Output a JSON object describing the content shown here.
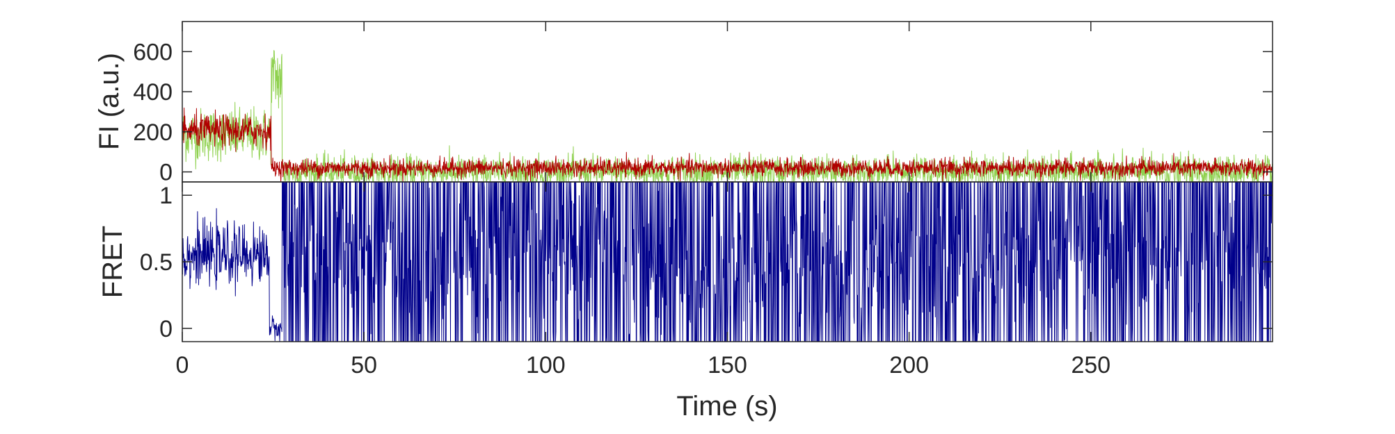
{
  "chart_data": [
    {
      "type": "line",
      "title": "",
      "xlabel": "",
      "ylabel": "FI (a.u.)",
      "xlim": [
        0,
        300
      ],
      "ylim": [
        -50,
        750
      ],
      "yticks": [
        0,
        200,
        400,
        600
      ],
      "ytick_labels": [
        "0",
        "200",
        "400",
        "600"
      ],
      "xticks": [
        0,
        50,
        100,
        150,
        200,
        250
      ],
      "xtick_labels": [],
      "grid": false,
      "legend": "none",
      "series": [
        {
          "color": "#8fd14f",
          "segments": [
            {
              "x_start": 0,
              "x_end": 24.5,
              "mean": 185,
              "noise_sd": 65
            },
            {
              "x_start": 24.5,
              "x_end": 27.5,
              "mean": 470,
              "noise_sd": 90
            },
            {
              "x_start": 27.5,
              "x_end": 300,
              "mean": 0,
              "noise_sd": 40
            }
          ]
        },
        {
          "color": "#b00000",
          "segments": [
            {
              "x_start": 0,
              "x_end": 24.5,
              "mean": 205,
              "noise_sd": 40
            },
            {
              "x_start": 24.5,
              "x_end": 300,
              "mean": 20,
              "noise_sd": 22
            }
          ]
        }
      ]
    },
    {
      "type": "line",
      "title": "",
      "xlabel": "Time (s)",
      "ylabel": "FRET",
      "xlim": [
        0,
        300
      ],
      "ylim": [
        -0.1,
        1.1
      ],
      "yticks": [
        0,
        0.5,
        1
      ],
      "ytick_labels": [
        "0",
        "0.5",
        "1"
      ],
      "xticks": [
        0,
        50,
        100,
        150,
        200,
        250
      ],
      "xtick_labels": [
        "0",
        "50",
        "100",
        "150",
        "200",
        "250"
      ],
      "grid": false,
      "legend": "none",
      "series": [
        {
          "color": "#00008b",
          "segments": [
            {
              "x_start": 0,
              "x_end": 24,
              "mean": 0.55,
              "noise_sd": 0.11
            },
            {
              "x_start": 24,
              "x_end": 27.5,
              "mean": 0.0,
              "noise_sd": 0.04
            },
            {
              "x_start": 27.5,
              "x_end": 300,
              "mean": 0.5,
              "noise_sd": 0.55
            }
          ]
        }
      ]
    }
  ]
}
